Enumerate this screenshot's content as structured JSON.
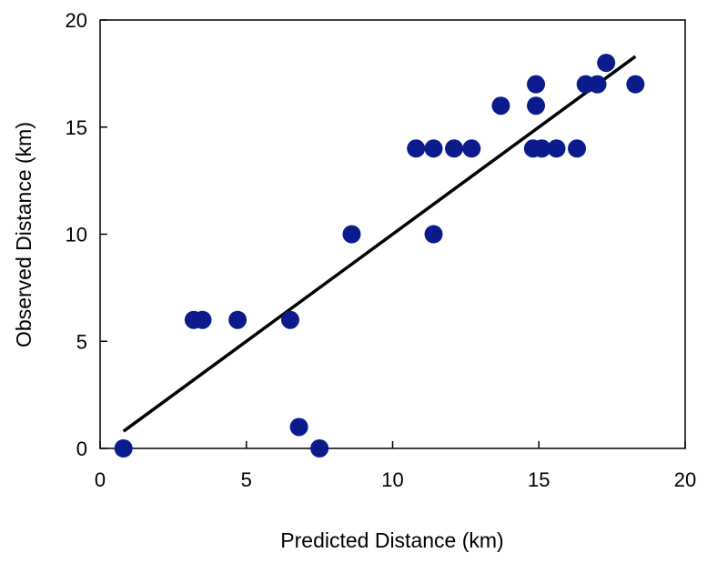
{
  "chart_data": {
    "type": "scatter",
    "xlabel": "Predicted Distance (km)",
    "ylabel": "Observed Distance (km)",
    "xlim": [
      0,
      20
    ],
    "ylim": [
      0,
      20
    ],
    "x_ticks": [
      "0",
      "5",
      "10",
      "15",
      "20"
    ],
    "y_ticks": [
      "0",
      "5",
      "10",
      "15",
      "20"
    ],
    "grid": false,
    "legend": "none",
    "marker_color": "#0b1b8c",
    "line_color": "#000000",
    "points": [
      {
        "x": 0.8,
        "y": 0
      },
      {
        "x": 7.5,
        "y": 0
      },
      {
        "x": 6.8,
        "y": 1
      },
      {
        "x": 3.2,
        "y": 6
      },
      {
        "x": 3.5,
        "y": 6
      },
      {
        "x": 4.7,
        "y": 6
      },
      {
        "x": 6.5,
        "y": 6
      },
      {
        "x": 8.6,
        "y": 10
      },
      {
        "x": 11.4,
        "y": 10
      },
      {
        "x": 10.8,
        "y": 14
      },
      {
        "x": 11.4,
        "y": 14
      },
      {
        "x": 12.1,
        "y": 14
      },
      {
        "x": 12.7,
        "y": 14
      },
      {
        "x": 14.8,
        "y": 14
      },
      {
        "x": 15.1,
        "y": 14
      },
      {
        "x": 15.6,
        "y": 14
      },
      {
        "x": 16.3,
        "y": 14
      },
      {
        "x": 13.7,
        "y": 16
      },
      {
        "x": 14.9,
        "y": 16
      },
      {
        "x": 14.9,
        "y": 17
      },
      {
        "x": 16.6,
        "y": 17
      },
      {
        "x": 17.0,
        "y": 17
      },
      {
        "x": 18.3,
        "y": 17
      },
      {
        "x": 17.3,
        "y": 18
      }
    ],
    "trendline": {
      "x": [
        0.8,
        18.3
      ],
      "y": [
        0.8,
        18.3
      ]
    }
  }
}
